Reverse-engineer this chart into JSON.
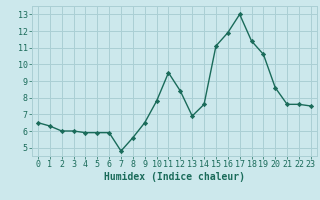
{
  "x": [
    0,
    1,
    2,
    3,
    4,
    5,
    6,
    7,
    8,
    9,
    10,
    11,
    12,
    13,
    14,
    15,
    16,
    17,
    18,
    19,
    20,
    21,
    22,
    23
  ],
  "y": [
    6.5,
    6.3,
    6.0,
    6.0,
    5.9,
    5.9,
    5.9,
    4.8,
    5.6,
    6.5,
    7.8,
    9.5,
    8.4,
    6.9,
    7.6,
    11.1,
    11.9,
    13.0,
    11.4,
    10.6,
    8.6,
    7.6,
    7.6,
    7.5
  ],
  "line_color": "#1a6b5a",
  "marker": "D",
  "marker_size": 2.2,
  "bg_color": "#cce8ec",
  "grid_color": "#aacfd4",
  "xlabel": "Humidex (Indice chaleur)",
  "xlim": [
    -0.5,
    23.5
  ],
  "ylim": [
    4.5,
    13.5
  ],
  "yticks": [
    5,
    6,
    7,
    8,
    9,
    10,
    11,
    12,
    13
  ],
  "xticks": [
    0,
    1,
    2,
    3,
    4,
    5,
    6,
    7,
    8,
    9,
    10,
    11,
    12,
    13,
    14,
    15,
    16,
    17,
    18,
    19,
    20,
    21,
    22,
    23
  ],
  "font_color": "#1a6b5a",
  "tick_fontsize": 6.0,
  "xlabel_fontsize": 7.0,
  "linewidth": 1.0
}
